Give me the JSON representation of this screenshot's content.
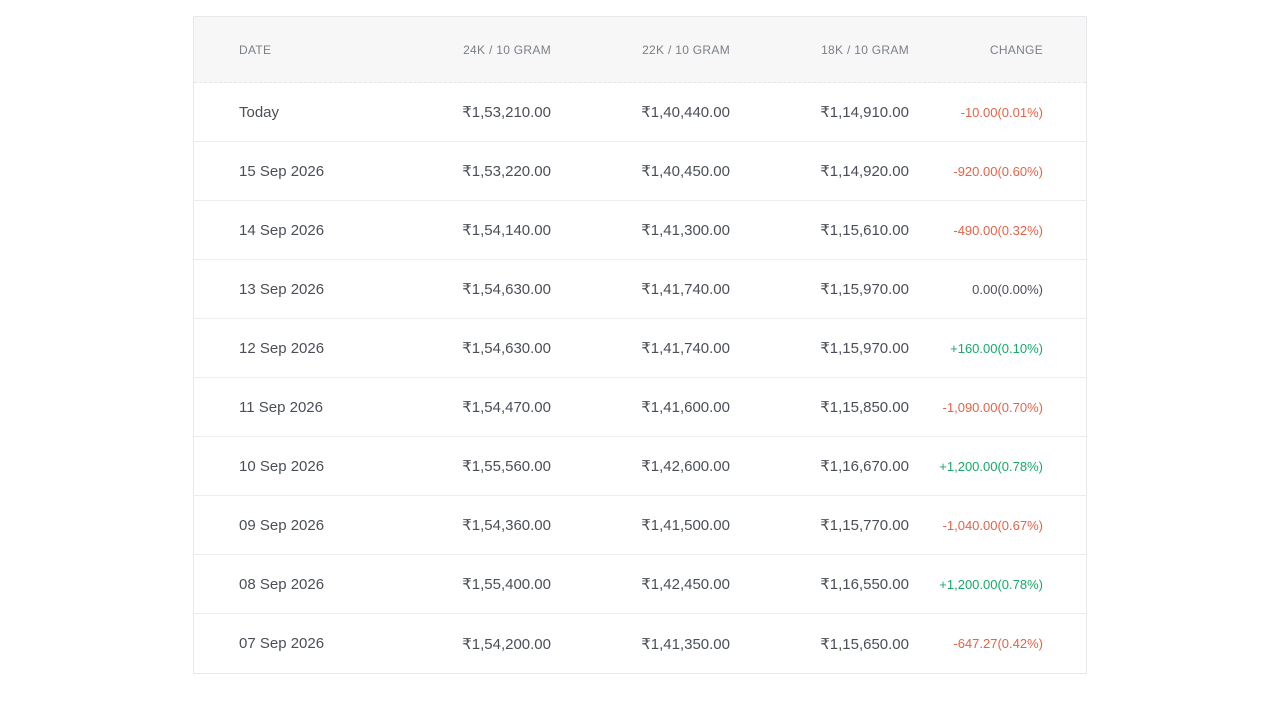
{
  "table": {
    "headers": {
      "date": "DATE",
      "k24": "24K / 10 GRAM",
      "k22": "22K / 10 GRAM",
      "k18": "18K / 10 GRAM",
      "change": "CHANGE"
    },
    "rows": [
      {
        "date": "Today",
        "k24": "₹1,53,210.00",
        "k22": "₹1,40,440.00",
        "k18": "₹1,14,910.00",
        "change": "-10.00(0.01%)",
        "direction": "negative"
      },
      {
        "date": "15 Sep 2026",
        "k24": "₹1,53,220.00",
        "k22": "₹1,40,450.00",
        "k18": "₹1,14,920.00",
        "change": "-920.00(0.60%)",
        "direction": "negative"
      },
      {
        "date": "14 Sep 2026",
        "k24": "₹1,54,140.00",
        "k22": "₹1,41,300.00",
        "k18": "₹1,15,610.00",
        "change": "-490.00(0.32%)",
        "direction": "negative"
      },
      {
        "date": "13 Sep 2026",
        "k24": "₹1,54,630.00",
        "k22": "₹1,41,740.00",
        "k18": "₹1,15,970.00",
        "change": "0.00(0.00%)",
        "direction": "neutral"
      },
      {
        "date": "12 Sep 2026",
        "k24": "₹1,54,630.00",
        "k22": "₹1,41,740.00",
        "k18": "₹1,15,970.00",
        "change": "+160.00(0.10%)",
        "direction": "positive"
      },
      {
        "date": "11 Sep 2026",
        "k24": "₹1,54,470.00",
        "k22": "₹1,41,600.00",
        "k18": "₹1,15,850.00",
        "change": "-1,090.00(0.70%)",
        "direction": "negative"
      },
      {
        "date": "10 Sep 2026",
        "k24": "₹1,55,560.00",
        "k22": "₹1,42,600.00",
        "k18": "₹1,16,670.00",
        "change": "+1,200.00(0.78%)",
        "direction": "positive"
      },
      {
        "date": "09 Sep 2026",
        "k24": "₹1,54,360.00",
        "k22": "₹1,41,500.00",
        "k18": "₹1,15,770.00",
        "change": "-1,040.00(0.67%)",
        "direction": "negative"
      },
      {
        "date": "08 Sep 2026",
        "k24": "₹1,55,400.00",
        "k22": "₹1,42,450.00",
        "k18": "₹1,16,550.00",
        "change": "+1,200.00(0.78%)",
        "direction": "positive"
      },
      {
        "date": "07 Sep 2026",
        "k24": "₹1,54,200.00",
        "k22": "₹1,41,350.00",
        "k18": "₹1,15,650.00",
        "change": "-647.27(0.42%)",
        "direction": "negative"
      }
    ]
  },
  "colors": {
    "negative": "#e0654a",
    "positive": "#1aa868",
    "neutral": "#4a4f57",
    "header_bg": "#f7f7f7"
  }
}
